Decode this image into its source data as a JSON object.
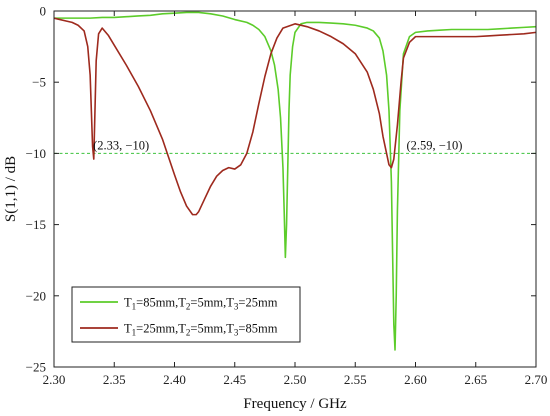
{
  "chart_data": {
    "type": "line",
    "xlabel": "Frequency / GHz",
    "ylabel": "S(1,1) / dB",
    "xlim": [
      2.3,
      2.7
    ],
    "ylim": [
      -25,
      0
    ],
    "x_ticks": [
      "2.30",
      "2.35",
      "2.40",
      "2.45",
      "2.50",
      "2.55",
      "2.60",
      "2.65",
      "2.70"
    ],
    "y_ticks": [
      "0",
      "-5",
      "-10",
      "-15",
      "-20",
      "-25"
    ],
    "reference_line": {
      "y": -10,
      "color": "#3ec23e",
      "style": "dashed"
    },
    "annotations": [
      {
        "x": 2.33,
        "y": -10,
        "text": "(2.33, −10)"
      },
      {
        "x": 2.59,
        "y": -10,
        "text": "(2.59, −10)"
      }
    ],
    "legend": {
      "placement": "bottom-left"
    },
    "series": [
      {
        "name": "T1=85mm,T2=5mm,T3=25mm",
        "name_parts": [
          [
            "T",
            "1",
            "=85mm,"
          ],
          [
            "T",
            "2",
            "=5mm,"
          ],
          [
            "T",
            "3",
            "=25mm"
          ]
        ],
        "color": "#5ccc2a",
        "x": [
          2.3,
          2.305,
          2.31,
          2.32,
          2.33,
          2.34,
          2.35,
          2.36,
          2.37,
          2.38,
          2.39,
          2.4,
          2.41,
          2.42,
          2.43,
          2.44,
          2.45,
          2.46,
          2.465,
          2.47,
          2.475,
          2.48,
          2.483,
          2.486,
          2.488,
          2.49,
          2.491,
          2.492,
          2.493,
          2.494,
          2.495,
          2.496,
          2.498,
          2.5,
          2.505,
          2.51,
          2.52,
          2.53,
          2.54,
          2.55,
          2.56,
          2.565,
          2.57,
          2.573,
          2.576,
          2.578,
          2.58,
          2.581,
          2.582,
          2.583,
          2.584,
          2.585,
          2.587,
          2.59,
          2.595,
          2.6,
          2.61,
          2.62,
          2.63,
          2.64,
          2.65,
          2.66,
          2.67,
          2.68,
          2.69,
          2.7
        ],
        "y": [
          -0.5,
          -0.5,
          -0.5,
          -0.5,
          -0.5,
          -0.45,
          -0.45,
          -0.4,
          -0.35,
          -0.3,
          -0.2,
          -0.15,
          -0.1,
          -0.1,
          -0.2,
          -0.35,
          -0.6,
          -0.8,
          -1.0,
          -1.3,
          -1.8,
          -2.8,
          -3.8,
          -5.5,
          -7.5,
          -11.0,
          -14.0,
          -17.3,
          -15.0,
          -11.0,
          -7.0,
          -4.5,
          -2.5,
          -1.5,
          -0.9,
          -0.8,
          -0.8,
          -0.85,
          -0.9,
          -1.0,
          -1.2,
          -1.4,
          -1.9,
          -2.8,
          -4.5,
          -7.0,
          -12.0,
          -17.0,
          -22.0,
          -23.8,
          -20.0,
          -14.0,
          -7.0,
          -3.0,
          -1.8,
          -1.5,
          -1.4,
          -1.35,
          -1.3,
          -1.3,
          -1.3,
          -1.3,
          -1.25,
          -1.2,
          -1.15,
          -1.1
        ]
      },
      {
        "name": "T1=25mm,T2=5mm,T3=85mm",
        "name_parts": [
          [
            "T",
            "1",
            "=25mm,"
          ],
          [
            "T",
            "2",
            "=5mm,"
          ],
          [
            "T",
            "3",
            "=85mm"
          ]
        ],
        "color": "#9e2a1e",
        "x": [
          2.3,
          2.305,
          2.31,
          2.315,
          2.32,
          2.325,
          2.328,
          2.33,
          2.331,
          2.332,
          2.333,
          2.334,
          2.335,
          2.337,
          2.34,
          2.345,
          2.35,
          2.36,
          2.37,
          2.38,
          2.39,
          2.4,
          2.405,
          2.41,
          2.415,
          2.418,
          2.42,
          2.425,
          2.43,
          2.435,
          2.44,
          2.445,
          2.45,
          2.455,
          2.46,
          2.465,
          2.47,
          2.475,
          2.48,
          2.485,
          2.49,
          2.5,
          2.51,
          2.52,
          2.53,
          2.54,
          2.55,
          2.56,
          2.565,
          2.57,
          2.573,
          2.576,
          2.578,
          2.58,
          2.582,
          2.585,
          2.588,
          2.59,
          2.595,
          2.6,
          2.61,
          2.62,
          2.63,
          2.64,
          2.65,
          2.66,
          2.67,
          2.68,
          2.69,
          2.7
        ],
        "y": [
          -0.5,
          -0.6,
          -0.7,
          -0.8,
          -1.0,
          -1.4,
          -2.5,
          -4.5,
          -7.0,
          -9.5,
          -10.4,
          -7.0,
          -3.5,
          -1.6,
          -1.2,
          -1.7,
          -2.4,
          -3.8,
          -5.3,
          -7.0,
          -9.0,
          -11.5,
          -12.7,
          -13.7,
          -14.3,
          -14.3,
          -14.1,
          -13.2,
          -12.3,
          -11.6,
          -11.2,
          -11.0,
          -11.1,
          -10.8,
          -10.0,
          -8.5,
          -6.5,
          -4.6,
          -3.0,
          -1.9,
          -1.2,
          -0.9,
          -1.1,
          -1.4,
          -1.8,
          -2.3,
          -3.0,
          -4.3,
          -5.5,
          -7.2,
          -8.8,
          -10.0,
          -10.8,
          -11.0,
          -10.4,
          -8.0,
          -5.0,
          -3.3,
          -2.2,
          -1.8,
          -1.8,
          -1.8,
          -1.8,
          -1.8,
          -1.8,
          -1.75,
          -1.7,
          -1.65,
          -1.6,
          -1.5
        ]
      }
    ]
  }
}
